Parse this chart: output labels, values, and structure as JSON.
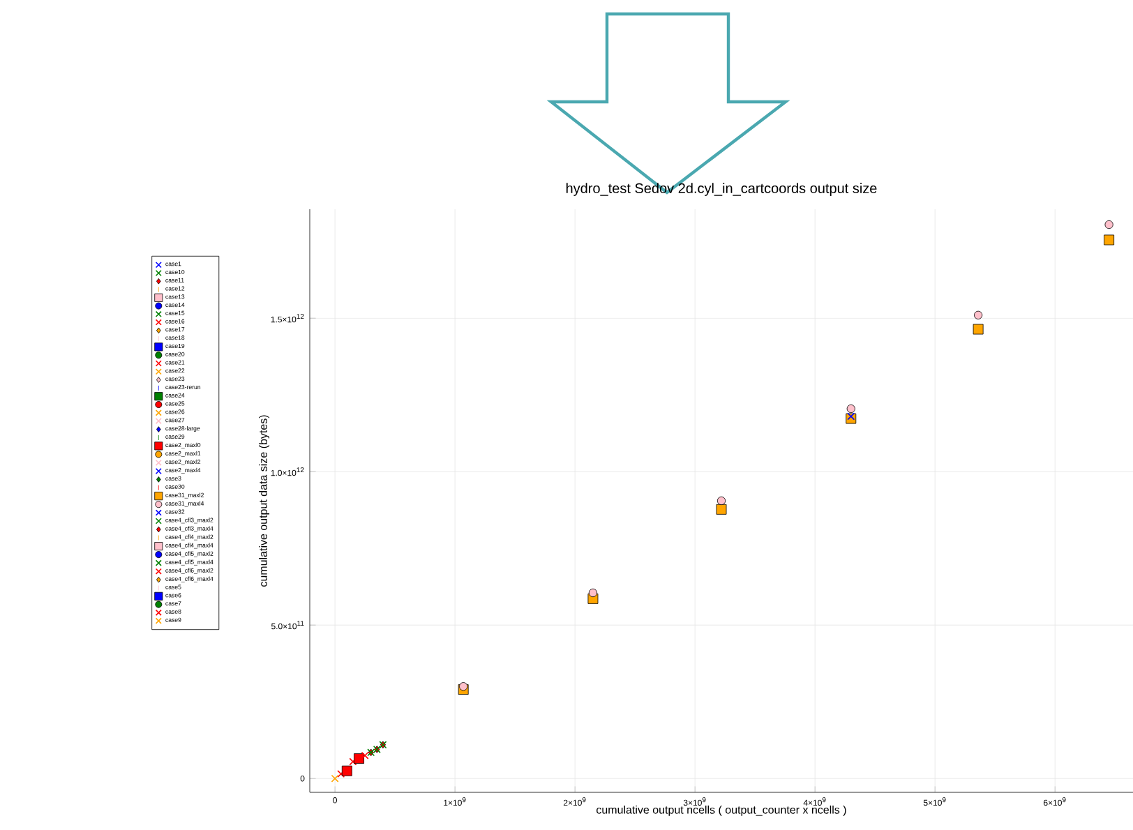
{
  "chart_data": {
    "type": "scatter",
    "title": "hydro_test Sedov 2d.cyl_in_cartcoords output size",
    "xlabel": "cumulative output ncells ( output_counter x ncells )",
    "ylabel": "cumulative output data size (bytes)",
    "xlim": [
      -210000000,
      6650000000
    ],
    "ylim": [
      -45000000000,
      1855000000000
    ],
    "xticks": [
      0,
      {
        "value": 1000000000,
        "label": "1×10$^{9}$"
      },
      {
        "value": 2000000000,
        "label": "2×10$^{9}$"
      },
      {
        "value": 3000000000,
        "label": "3×10$^{9}$"
      },
      {
        "value": 4000000000,
        "label": "4×10$^{9}$"
      },
      {
        "value": 5000000000,
        "label": "5×10$^{9}$"
      },
      {
        "value": 6000000000,
        "label": "6×10$^{9}$"
      }
    ],
    "yticks": [
      0,
      {
        "value": 500000000000,
        "label": "5.0×10$^{11}$"
      },
      {
        "value": 1000000000000,
        "label": "1.0×10$^{12}$"
      },
      {
        "value": 1500000000000,
        "label": "1.5×10$^{12}$"
      }
    ],
    "grid": true,
    "legend": "left",
    "series": [
      {
        "name": "case1",
        "color": "#0000ff",
        "marker": "cross"
      },
      {
        "name": "case10",
        "color": "#008000",
        "marker": "cross"
      },
      {
        "name": "case11",
        "color": "#ff0000",
        "marker": "diamond",
        "x": [
          300000000,
          350000000,
          400000000
        ],
        "values": [
          85000000000,
          95000000000,
          110000000000
        ]
      },
      {
        "name": "case12",
        "color": "#ffa500",
        "marker": "none"
      },
      {
        "name": "case13",
        "color": "#ffc0cb",
        "marker": "square"
      },
      {
        "name": "case14",
        "color": "#0000ff",
        "marker": "circle"
      },
      {
        "name": "case15",
        "color": "#008000",
        "marker": "cross"
      },
      {
        "name": "case16",
        "color": "#ff0000",
        "marker": "cross"
      },
      {
        "name": "case17",
        "color": "#ffa500",
        "marker": "diamond"
      },
      {
        "name": "case18",
        "color": "#ffc0cb",
        "marker": "none"
      },
      {
        "name": "case19",
        "color": "#0000ff",
        "marker": "square"
      },
      {
        "name": "case20",
        "color": "#008000",
        "marker": "circle"
      },
      {
        "name": "case21",
        "color": "#ff0000",
        "marker": "cross",
        "x": [
          50000000,
          150000000
        ],
        "values": [
          15000000000,
          55000000000
        ]
      },
      {
        "name": "case22",
        "color": "#ffa500",
        "marker": "cross"
      },
      {
        "name": "case23",
        "color": "#ffc0cb",
        "marker": "diamond"
      },
      {
        "name": "case23-rerun",
        "color": "#0000ff",
        "marker": "none"
      },
      {
        "name": "case24",
        "color": "#008000",
        "marker": "square"
      },
      {
        "name": "case25",
        "color": "#ff0000",
        "marker": "circle"
      },
      {
        "name": "case26",
        "color": "#ffa500",
        "marker": "cross"
      },
      {
        "name": "case27",
        "color": "#ffc0cb",
        "marker": "cross"
      },
      {
        "name": "case28-large",
        "color": "#0000ff",
        "marker": "diamond"
      },
      {
        "name": "case29",
        "color": "#008000",
        "marker": "none"
      },
      {
        "name": "case2_maxl0",
        "color": "#ff0000",
        "marker": "square",
        "x": [
          100000000,
          200000000
        ],
        "values": [
          25000000000,
          65000000000
        ]
      },
      {
        "name": "case2_maxl1",
        "color": "#ffa500",
        "marker": "circle"
      },
      {
        "name": "case2_maxl2",
        "color": "#ffc0cb",
        "marker": "cross"
      },
      {
        "name": "case2_maxl4",
        "color": "#0000ff",
        "marker": "cross"
      },
      {
        "name": "case3",
        "color": "#008000",
        "marker": "diamond"
      },
      {
        "name": "case30",
        "color": "#ff0000",
        "marker": "none"
      },
      {
        "name": "case31_maxl2",
        "color": "#ffa500",
        "marker": "square",
        "x": [
          1070000000,
          2150000000,
          3220000000,
          4300000000,
          5360000000,
          6450000000
        ],
        "values": [
          290000000000,
          586000000000,
          877000000000,
          1173000000000,
          1464000000000,
          1755000000000
        ]
      },
      {
        "name": "case31_maxl4",
        "color": "#ffc0cb",
        "marker": "circle",
        "x": [
          1070000000,
          2150000000,
          3220000000,
          4300000000,
          5360000000,
          6450000000
        ],
        "values": [
          300000000000,
          605000000000,
          905000000000,
          1205000000000,
          1510000000000,
          1805000000000
        ]
      },
      {
        "name": "case32",
        "color": "#0000ff",
        "marker": "cross",
        "x": [
          4300000000
        ],
        "values": [
          1180000000000
        ]
      },
      {
        "name": "case4_cfl3_maxl2",
        "color": "#008000",
        "marker": "cross"
      },
      {
        "name": "case4_cfl3_maxl4",
        "color": "#ff0000",
        "marker": "diamond"
      },
      {
        "name": "case4_cfl4_maxl2",
        "color": "#ffa500",
        "marker": "none"
      },
      {
        "name": "case4_cfl4_maxl4",
        "color": "#ffc0cb",
        "marker": "square"
      },
      {
        "name": "case4_cfl5_maxl2",
        "color": "#0000ff",
        "marker": "circle"
      },
      {
        "name": "case4_cfl5_maxl4",
        "color": "#008000",
        "marker": "cross",
        "x": [
          300000000,
          350000000,
          400000000
        ],
        "values": [
          85000000000,
          95000000000,
          110000000000
        ]
      },
      {
        "name": "case4_cfl6_maxl2",
        "color": "#ff0000",
        "marker": "cross"
      },
      {
        "name": "case4_cfl6_maxl4",
        "color": "#ffa500",
        "marker": "diamond"
      },
      {
        "name": "case5",
        "color": "#ffc0cb",
        "marker": "none"
      },
      {
        "name": "case6",
        "color": "#0000ff",
        "marker": "square"
      },
      {
        "name": "case7",
        "color": "#008000",
        "marker": "circle"
      },
      {
        "name": "case8",
        "color": "#ff0000",
        "marker": "cross",
        "x": [
          250000000
        ],
        "values": [
          75000000000
        ]
      },
      {
        "name": "case9",
        "color": "#ffa500",
        "marker": "cross",
        "x": [
          0
        ],
        "values": [
          0
        ]
      }
    ]
  }
}
